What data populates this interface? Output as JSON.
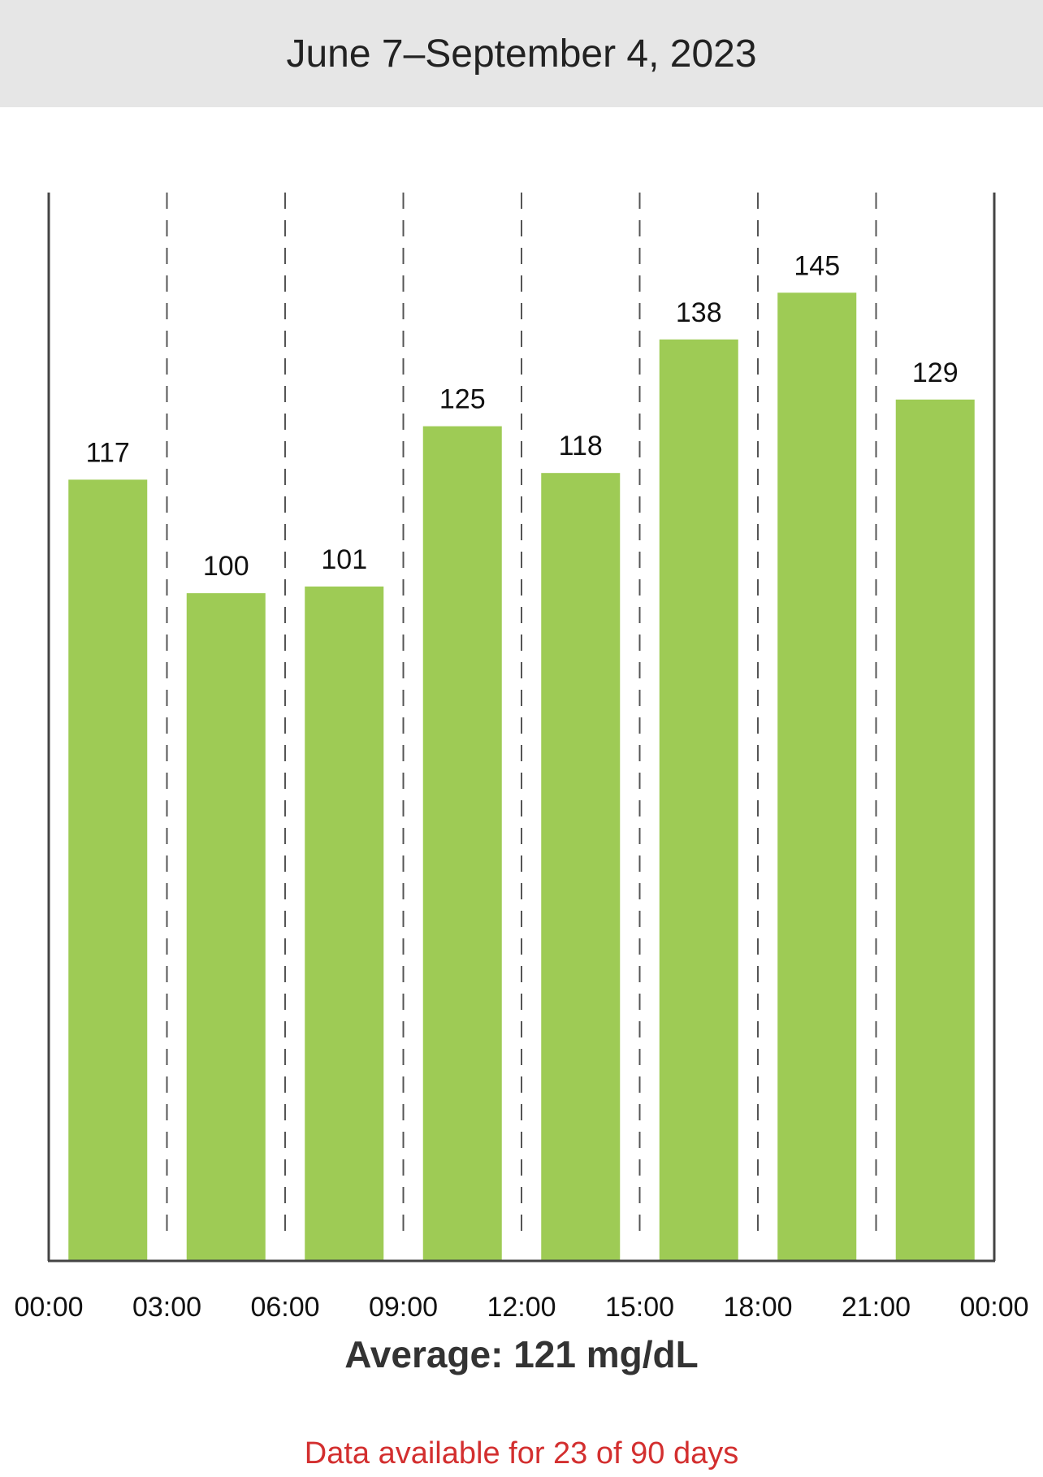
{
  "header": {
    "date_range": "June 7–September 4, 2023"
  },
  "chart_data": {
    "type": "bar",
    "categories": [
      "00:00–03:00",
      "03:00–06:00",
      "06:00–09:00",
      "09:00–12:00",
      "12:00–15:00",
      "15:00–18:00",
      "18:00–21:00",
      "21:00–00:00"
    ],
    "values": [
      117,
      100,
      101,
      125,
      118,
      138,
      145,
      129
    ],
    "x_tick_labels": [
      "00:00",
      "03:00",
      "06:00",
      "09:00",
      "12:00",
      "15:00",
      "18:00",
      "21:00",
      "00:00"
    ],
    "ylim": [
      0,
      160
    ],
    "grid": "vertical dashed",
    "bar_color": "#9ecb55",
    "title": "",
    "xlabel": "",
    "ylabel": ""
  },
  "summary": {
    "average_text": "Average: 121 mg/dL",
    "availability_text": "Data available for 23 of 90 days",
    "availability_color": "#d32f2f"
  }
}
